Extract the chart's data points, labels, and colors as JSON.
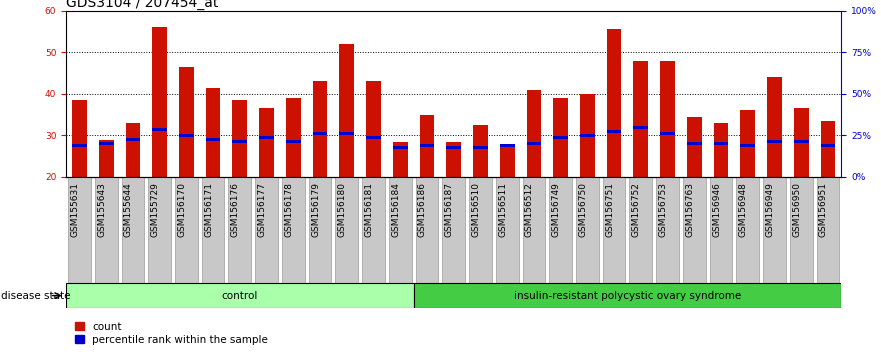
{
  "title": "GDS3104 / 207454_at",
  "samples": [
    "GSM155631",
    "GSM155643",
    "GSM155644",
    "GSM155729",
    "GSM156170",
    "GSM156171",
    "GSM156176",
    "GSM156177",
    "GSM156178",
    "GSM156179",
    "GSM156180",
    "GSM156181",
    "GSM156184",
    "GSM156186",
    "GSM156187",
    "GSM156510",
    "GSM156511",
    "GSM156512",
    "GSM156749",
    "GSM156750",
    "GSM156751",
    "GSM156752",
    "GSM156753",
    "GSM156763",
    "GSM156946",
    "GSM156948",
    "GSM156949",
    "GSM156950",
    "GSM156951"
  ],
  "counts": [
    38.5,
    28.8,
    33.0,
    56.0,
    46.5,
    41.5,
    38.5,
    36.5,
    39.0,
    43.0,
    52.0,
    43.0,
    28.5,
    35.0,
    28.5,
    32.5,
    27.5,
    41.0,
    39.0,
    40.0,
    55.5,
    48.0,
    48.0,
    34.5,
    33.0,
    36.0,
    44.0,
    36.5,
    33.5
  ],
  "percentile_ranks": [
    27.5,
    28.0,
    29.0,
    31.5,
    30.0,
    29.0,
    28.5,
    29.5,
    28.5,
    30.5,
    30.5,
    29.5,
    27.0,
    27.5,
    27.0,
    27.0,
    27.5,
    28.0,
    29.5,
    30.0,
    31.0,
    32.0,
    30.5,
    28.0,
    28.0,
    27.5,
    28.5,
    28.5,
    27.5
  ],
  "control_count": 13,
  "group_labels": [
    "control",
    "insulin-resistant polycystic ovary syndrome"
  ],
  "group_color_light": "#AAFFAA",
  "group_color_dark": "#44CC44",
  "ymin": 20,
  "ymax": 60,
  "yticks": [
    20,
    30,
    40,
    50,
    60
  ],
  "bar_color": "#CC1100",
  "percentile_color": "#0000CC",
  "bar_width": 0.55,
  "left_yaxis_color": "#CC1100",
  "right_yaxis_color": "#0000CC",
  "disease_state_label": "disease state",
  "legend_count_label": "count",
  "legend_percentile_label": "percentile rank within the sample",
  "title_fontsize": 10,
  "tick_fontsize": 6.5,
  "label_fontsize": 7.5
}
